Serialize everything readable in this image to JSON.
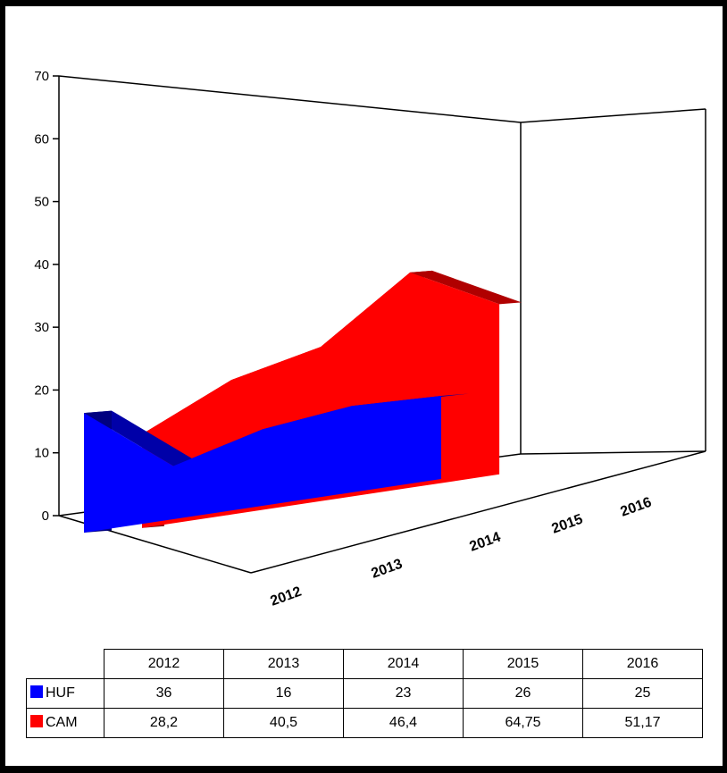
{
  "chart_data": {
    "type": "area",
    "view": "3d",
    "categories": [
      "2012",
      "2013",
      "2014",
      "2015",
      "2016"
    ],
    "series": [
      {
        "name": "HUF",
        "values": [
          36,
          16,
          23,
          26,
          25
        ],
        "display": [
          "36",
          "16",
          "23",
          "26",
          "25"
        ],
        "color": "#0000ff"
      },
      {
        "name": "CAM",
        "values": [
          28.2,
          40.5,
          46.4,
          64.75,
          51.17
        ],
        "display": [
          "28,2",
          "40,5",
          "46,4",
          "64,75",
          "51,17"
        ],
        "color": "#ff0000"
      }
    ],
    "yticks": [
      "0",
      "10",
      "20",
      "30",
      "40",
      "50",
      "60",
      "70"
    ],
    "ylim": [
      0,
      70
    ],
    "legend": "data table below chart",
    "grid": false
  },
  "table": {
    "header": [
      "2012",
      "2013",
      "2014",
      "2015",
      "2016"
    ]
  }
}
